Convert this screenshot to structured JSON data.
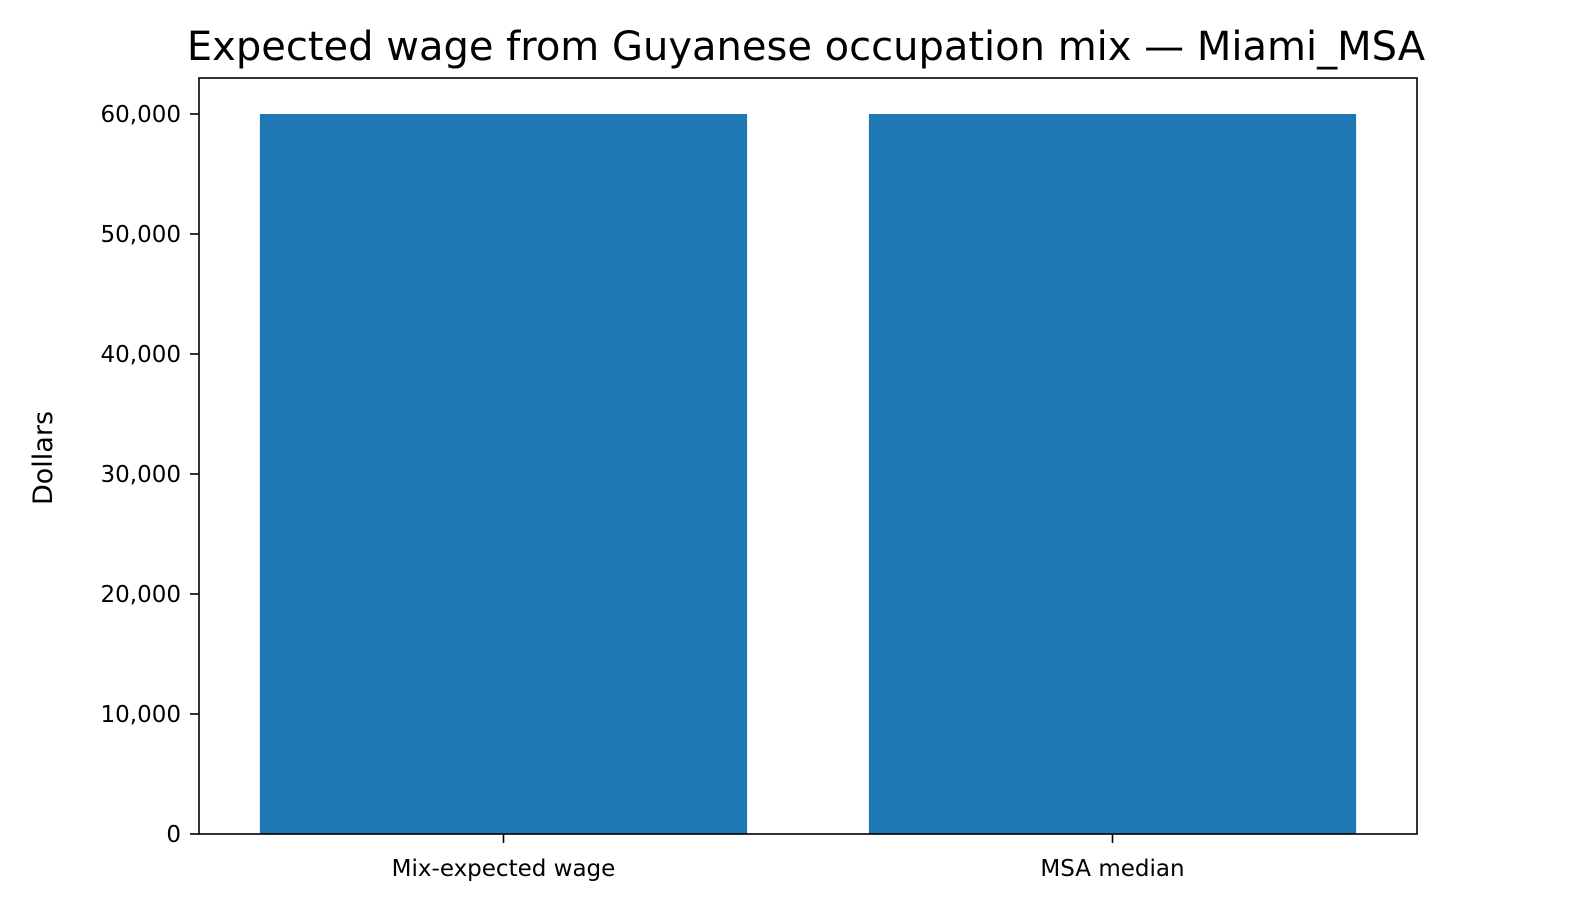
{
  "chart_data": {
    "type": "bar",
    "title": "Expected wage from Guyanese occupation mix — Miami_MSA",
    "xlabel": "",
    "ylabel": "Dollars",
    "categories": [
      "Mix-expected wage",
      "MSA median"
    ],
    "values": [
      60000,
      60000
    ],
    "ylim": [
      0,
      63000
    ],
    "yticks": [
      0,
      10000,
      20000,
      30000,
      40000,
      50000,
      60000
    ],
    "ytick_labels": [
      "0",
      "10,000",
      "20,000",
      "30,000",
      "40,000",
      "50,000",
      "60,000"
    ],
    "grid": false,
    "bar_color": "#1f77b4"
  }
}
